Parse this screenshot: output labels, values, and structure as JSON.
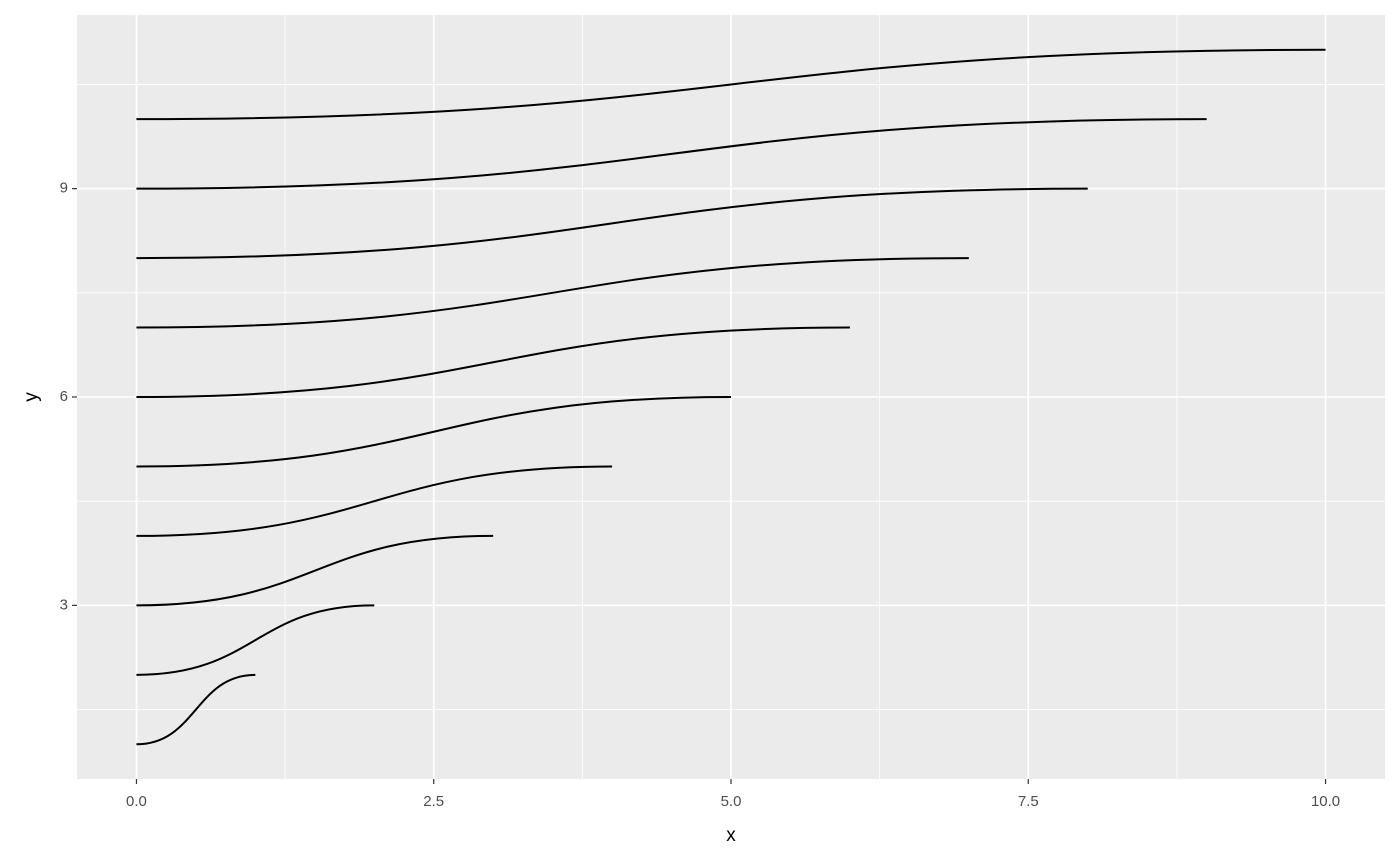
{
  "chart_data": {
    "type": "line",
    "xlabel": "x",
    "ylabel": "y",
    "xlim": [
      -0.5,
      10.5
    ],
    "ylim": [
      0.5,
      11.5
    ],
    "xticks": [
      {
        "value": 0,
        "label": "0.0"
      },
      2.5,
      {
        "value": 5,
        "label": "5.0"
      },
      7.5,
      {
        "value": 10,
        "label": "10.0"
      }
    ],
    "yticks": [
      3,
      6,
      9
    ],
    "xminor": [
      1.25,
      3.75,
      6.25,
      8.75
    ],
    "yminor": [
      1.5,
      4.5,
      7.5,
      10.5
    ],
    "grid": true,
    "series": [
      {
        "color": "#000000",
        "x": [
          0,
          1
        ],
        "values": [
          1,
          2
        ]
      },
      {
        "color": "#000000",
        "x": [
          0,
          2
        ],
        "values": [
          2,
          3
        ]
      },
      {
        "color": "#000000",
        "x": [
          0,
          3
        ],
        "values": [
          3,
          4
        ]
      },
      {
        "color": "#000000",
        "x": [
          0,
          4
        ],
        "values": [
          4,
          5
        ]
      },
      {
        "color": "#000000",
        "x": [
          0,
          5
        ],
        "values": [
          5,
          6
        ]
      },
      {
        "color": "#000000",
        "x": [
          0,
          6
        ],
        "values": [
          6,
          7
        ]
      },
      {
        "color": "#000000",
        "x": [
          0,
          7
        ],
        "values": [
          7,
          8
        ]
      },
      {
        "color": "#000000",
        "x": [
          0,
          8
        ],
        "values": [
          8,
          9
        ]
      },
      {
        "color": "#000000",
        "x": [
          0,
          9
        ],
        "values": [
          9,
          10
        ]
      },
      {
        "color": "#000000",
        "x": [
          0,
          10
        ],
        "values": [
          10,
          11
        ]
      }
    ]
  }
}
